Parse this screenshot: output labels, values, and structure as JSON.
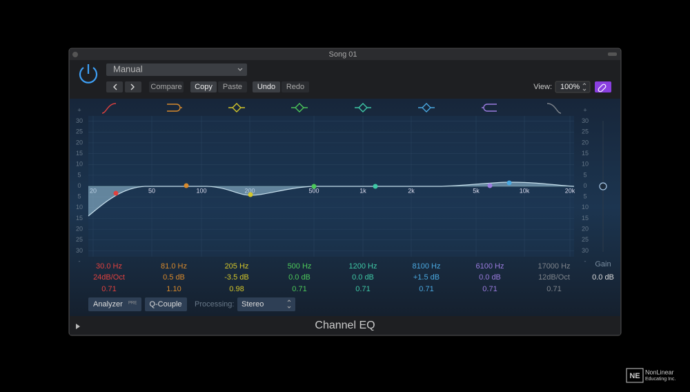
{
  "window": {
    "title": "Song 01"
  },
  "toolbar": {
    "preset": "Manual",
    "buttons": [
      "Compare",
      "Copy",
      "Paste",
      "Undo",
      "Redo"
    ],
    "view_label": "View:",
    "view_value": "100%"
  },
  "graph": {
    "scale": [
      "+",
      "30",
      "25",
      "20",
      "15",
      "10",
      "5",
      "0",
      "5",
      "10",
      "15",
      "20",
      "25",
      "30",
      "-"
    ],
    "freq_labels": [
      "20",
      "50",
      "100",
      "200",
      "500",
      "1k",
      "2k",
      "5k",
      "10k",
      "20k"
    ]
  },
  "bands": [
    {
      "freq": "30.0 Hz",
      "gain": "24dB/Oct",
      "q": "0.71"
    },
    {
      "freq": "81.0 Hz",
      "gain": "0.5 dB",
      "q": "1.10"
    },
    {
      "freq": "205 Hz",
      "gain": "-3.5 dB",
      "q": "0.98"
    },
    {
      "freq": "500 Hz",
      "gain": "0.0 dB",
      "q": "0.71"
    },
    {
      "freq": "1200 Hz",
      "gain": "0.0 dB",
      "q": "0.71"
    },
    {
      "freq": "8100 Hz",
      "gain": "+1.5 dB",
      "q": "0.71"
    },
    {
      "freq": "6100 Hz",
      "gain": "0.0 dB",
      "q": "0.71"
    },
    {
      "freq": "17000 Hz",
      "gain": "12dB/Oct",
      "q": "0.71"
    }
  ],
  "gain": {
    "label": "Gain",
    "value": "0.0 dB"
  },
  "bottom": {
    "analyzer": "Analyzer",
    "analyzer_badge": "PRE",
    "q_couple": "Q-Couple",
    "processing_label": "Processing:",
    "processing_value": "Stereo"
  },
  "footer": {
    "title": "Channel EQ"
  },
  "watermark": {
    "logo": "NE",
    "line1": "NonLinear",
    "line2": "Educating Inc."
  }
}
